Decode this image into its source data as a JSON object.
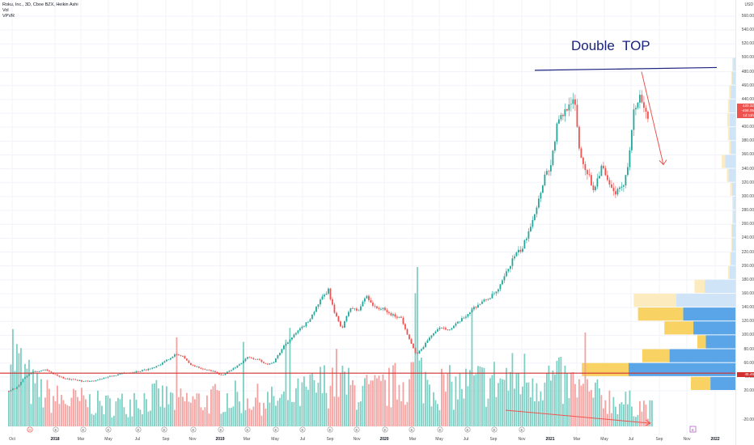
{
  "header": {
    "symbol_line": "Roku, Inc., 3D, Cboe BZX, Heikin Ashi",
    "vol_label": "Vol",
    "vpvr_label": "VPVR"
  },
  "annotation": {
    "text": "Double  TOP"
  },
  "price_axis": {
    "currency": "USD",
    "ticks": [
      "560.00",
      "540.00",
      "520.00",
      "500.00",
      "480.00",
      "460.00",
      "440.00",
      "420.00",
      "400.00",
      "380.00",
      "360.00",
      "340.00",
      "320.00",
      "300.00",
      "280.00",
      "260.00",
      "240.00",
      "220.00",
      "200.00",
      "180.00",
      "160.00",
      "140.00",
      "120.00",
      "100.00",
      "80.00",
      "60.00",
      "40.00",
      "20.00",
      "-20.00"
    ],
    "labels": {
      "last_price": "420.32",
      "change": "-458.05",
      "countdown": "1d 11h",
      "support_level": "45.46"
    }
  },
  "time_axis": {
    "ticks": [
      {
        "label": "Oct",
        "bold": false
      },
      {
        "label": "2018",
        "bold": true
      },
      {
        "label": "Mar",
        "bold": false
      },
      {
        "label": "May",
        "bold": false
      },
      {
        "label": "Jul",
        "bold": false
      },
      {
        "label": "Sep",
        "bold": false
      },
      {
        "label": "Nov",
        "bold": false
      },
      {
        "label": "2019",
        "bold": true
      },
      {
        "label": "Mar",
        "bold": false
      },
      {
        "label": "May",
        "bold": false
      },
      {
        "label": "Jul",
        "bold": false
      },
      {
        "label": "Sep",
        "bold": false
      },
      {
        "label": "Nov",
        "bold": false
      },
      {
        "label": "2020",
        "bold": true
      },
      {
        "label": "Mar",
        "bold": false
      },
      {
        "label": "May",
        "bold": false
      },
      {
        "label": "Jul",
        "bold": false
      },
      {
        "label": "Sep",
        "bold": false
      },
      {
        "label": "Nov",
        "bold": false
      },
      {
        "label": "2021",
        "bold": true
      },
      {
        "label": "Mar",
        "bold": false
      },
      {
        "label": "May",
        "bold": false
      },
      {
        "label": "Jul",
        "bold": false
      },
      {
        "label": "Sep",
        "bold": false
      },
      {
        "label": "Nov",
        "bold": false
      },
      {
        "label": "2022",
        "bold": true
      }
    ]
  },
  "colors": {
    "up": "#26a69a",
    "down": "#ef5350",
    "up_vol": "#7fcfc5",
    "down_vol": "#f4a3a1",
    "resistance_line": "#1a237e",
    "support_line": "#d32f2f",
    "arrow": "#ef5350",
    "vpvr_up": "#5aa5e8",
    "vpvr_down": "#f9d264",
    "vpvr_up_light": "#cfe4f7",
    "vpvr_down_light": "#fcebbe",
    "grid": "#f0f3fa"
  },
  "price_path": [
    [
      0,
      18
    ],
    [
      10,
      20
    ],
    [
      20,
      25
    ],
    [
      30,
      40
    ],
    [
      40,
      48
    ],
    [
      55,
      50
    ],
    [
      70,
      42
    ],
    [
      80,
      37
    ],
    [
      95,
      35
    ],
    [
      110,
      33
    ],
    [
      125,
      38
    ],
    [
      140,
      42
    ],
    [
      155,
      46
    ],
    [
      170,
      48
    ],
    [
      185,
      52
    ],
    [
      200,
      60
    ],
    [
      215,
      72
    ],
    [
      225,
      70
    ],
    [
      232,
      60
    ],
    [
      240,
      55
    ],
    [
      250,
      52
    ],
    [
      262,
      48
    ],
    [
      272,
      42
    ],
    [
      285,
      50
    ],
    [
      297,
      60
    ],
    [
      305,
      68
    ],
    [
      318,
      65
    ],
    [
      330,
      58
    ],
    [
      338,
      62
    ],
    [
      350,
      85
    ],
    [
      365,
      103
    ],
    [
      380,
      120
    ],
    [
      395,
      150
    ],
    [
      405,
      165
    ],
    [
      413,
      130
    ],
    [
      422,
      110
    ],
    [
      432,
      140
    ],
    [
      442,
      135
    ],
    [
      452,
      158
    ],
    [
      462,
      140
    ],
    [
      472,
      138
    ],
    [
      482,
      130
    ],
    [
      495,
      125
    ],
    [
      505,
      95
    ],
    [
      513,
      72
    ],
    [
      520,
      80
    ],
    [
      532,
      100
    ],
    [
      545,
      112
    ],
    [
      555,
      108
    ],
    [
      565,
      118
    ],
    [
      575,
      128
    ],
    [
      585,
      140
    ],
    [
      595,
      148
    ],
    [
      605,
      155
    ],
    [
      615,
      165
    ],
    [
      625,
      190
    ],
    [
      635,
      215
    ],
    [
      645,
      225
    ],
    [
      655,
      260
    ],
    [
      665,
      295
    ],
    [
      672,
      330
    ],
    [
      680,
      345
    ],
    [
      688,
      405
    ],
    [
      696,
      420
    ],
    [
      704,
      440
    ],
    [
      710,
      430
    ],
    [
      716,
      360
    ],
    [
      725,
      335
    ],
    [
      733,
      310
    ],
    [
      743,
      345
    ],
    [
      750,
      320
    ],
    [
      758,
      305
    ],
    [
      768,
      310
    ],
    [
      775,
      345
    ],
    [
      782,
      420
    ],
    [
      790,
      445
    ],
    [
      797,
      425
    ],
    [
      801,
      410
    ]
  ],
  "volume_path": [
    [
      0,
      55
    ],
    [
      20,
      30
    ],
    [
      40,
      18
    ],
    [
      60,
      14
    ],
    [
      80,
      12
    ],
    [
      100,
      12
    ],
    [
      130,
      10
    ],
    [
      160,
      11
    ],
    [
      190,
      14
    ],
    [
      220,
      12
    ],
    [
      250,
      12
    ],
    [
      280,
      14
    ],
    [
      310,
      13
    ],
    [
      340,
      12
    ],
    [
      370,
      15
    ],
    [
      400,
      20
    ],
    [
      415,
      24
    ],
    [
      430,
      18
    ],
    [
      460,
      16
    ],
    [
      480,
      18
    ],
    [
      500,
      22
    ],
    [
      515,
      26
    ],
    [
      530,
      20
    ],
    [
      560,
      18
    ],
    [
      590,
      20
    ],
    [
      620,
      22
    ],
    [
      650,
      24
    ],
    [
      680,
      22
    ],
    [
      700,
      20
    ],
    [
      730,
      15
    ],
    [
      760,
      12
    ],
    [
      790,
      10
    ],
    [
      805,
      8
    ]
  ],
  "vpvr": [
    {
      "price_lo": 20,
      "price_hi": 40,
      "up": 0.22,
      "down": 0.23
    },
    {
      "price_lo": 40,
      "price_hi": 60,
      "up": 0.94,
      "down": 0.55
    },
    {
      "price_lo": 60,
      "price_hi": 80,
      "up": 0.58,
      "down": 0.32
    },
    {
      "price_lo": 80,
      "price_hi": 100,
      "up": 0.26,
      "down": 0.1
    },
    {
      "price_lo": 100,
      "price_hi": 120,
      "up": 0.37,
      "down": 0.34
    },
    {
      "price_lo": 120,
      "price_hi": 140,
      "up": 0.46,
      "down": 0.53
    },
    {
      "price_lo": 140,
      "price_hi": 160,
      "up": 0.52,
      "down": 0.5
    },
    {
      "price_lo": 160,
      "price_hi": 180,
      "up": 0.27,
      "down": 0.12
    },
    {
      "price_lo": 180,
      "price_hi": 200,
      "up": 0.05,
      "down": 0.02
    },
    {
      "price_lo": 200,
      "price_hi": 220,
      "up": 0.04,
      "down": 0.01
    },
    {
      "price_lo": 220,
      "price_hi": 240,
      "up": 0.03,
      "down": 0.01
    },
    {
      "price_lo": 240,
      "price_hi": 260,
      "up": 0.03,
      "down": 0.01
    },
    {
      "price_lo": 260,
      "price_hi": 280,
      "up": 0.02,
      "down": 0.01
    },
    {
      "price_lo": 280,
      "price_hi": 300,
      "up": 0.02,
      "down": 0.01
    },
    {
      "price_lo": 300,
      "price_hi": 320,
      "up": 0.03,
      "down": 0.02
    },
    {
      "price_lo": 320,
      "price_hi": 340,
      "up": 0.06,
      "down": 0.02
    },
    {
      "price_lo": 340,
      "price_hi": 360,
      "up": 0.09,
      "down": 0.04
    },
    {
      "price_lo": 360,
      "price_hi": 380,
      "up": 0.04,
      "down": 0.02
    },
    {
      "price_lo": 380,
      "price_hi": 400,
      "up": 0.05,
      "down": 0.02
    },
    {
      "price_lo": 400,
      "price_hi": 420,
      "up": 0.05,
      "down": 0.03
    },
    {
      "price_lo": 420,
      "price_hi": 440,
      "up": 0.05,
      "down": 0.02
    },
    {
      "price_lo": 440,
      "price_hi": 460,
      "up": 0.04,
      "down": 0.02
    },
    {
      "price_lo": 460,
      "price_hi": 480,
      "up": 0.03,
      "down": 0.01
    },
    {
      "price_lo": 480,
      "price_hi": 500,
      "up": 0.02,
      "down": 0.01
    }
  ],
  "event_markers": [
    "D",
    "E",
    "E",
    "E",
    "E",
    "E",
    "E",
    "E",
    "E",
    "E",
    "E",
    "E",
    "E",
    "E",
    "E",
    "E",
    "E",
    "E",
    "E"
  ],
  "future_marker": "E"
}
